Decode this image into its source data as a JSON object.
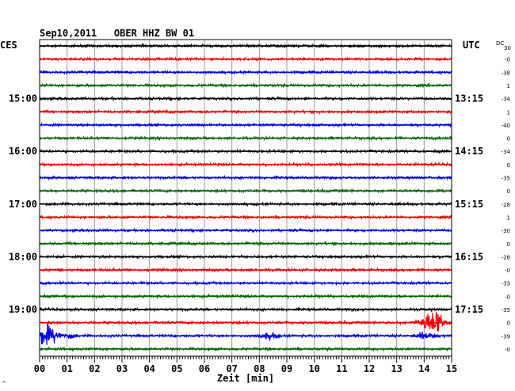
{
  "chart_data": {
    "type": "line",
    "title": "Sep10,2011   OBER HHZ BW 01",
    "left_label": "CES",
    "right_label": "UTC",
    "dc_label": "DC",
    "dc_sub": "30",
    "xlabel": "Zeit [min]",
    "x_ticks": [
      "00",
      "01",
      "02",
      "03",
      "04",
      "05",
      "06",
      "07",
      "08",
      "09",
      "10",
      "11",
      "12",
      "13",
      "14",
      "15"
    ],
    "xlim": [
      0,
      15
    ],
    "left_times": [
      "15:00",
      "16:00",
      "17:00",
      "18:00",
      "19:00"
    ],
    "right_times": [
      "13:15",
      "14:15",
      "15:15",
      "16:15",
      "17:15"
    ],
    "dc_values": [
      "-0",
      "-38",
      "1",
      "-34",
      "1",
      "-40",
      "0",
      "-34",
      "0",
      "-35",
      "0",
      "-28",
      "1",
      "-30",
      "0",
      "-28",
      "-0",
      "-33",
      "-0",
      "-35",
      "0",
      "-39",
      "-0"
    ],
    "trace_colors": [
      "#000000",
      "#ee0000",
      "#0000dd",
      "#006600"
    ],
    "row_count": 24,
    "grid": true,
    "events": [
      {
        "row": 21,
        "start_min": 13.6,
        "peak_min": 14.5,
        "end_min": 15.0,
        "amplitude": "large"
      },
      {
        "row": 22,
        "start_min": 0.0,
        "peak_min": 0.1,
        "end_min": 1.4,
        "amplitude": "large"
      },
      {
        "row": 22,
        "start_min": 7.8,
        "peak_min": 8.5,
        "end_min": 9.0,
        "amplitude": "small"
      },
      {
        "row": 22,
        "start_min": 13.5,
        "peak_min": 14.0,
        "end_min": 15.0,
        "amplitude": "small"
      }
    ]
  },
  "corner_mark": "^"
}
